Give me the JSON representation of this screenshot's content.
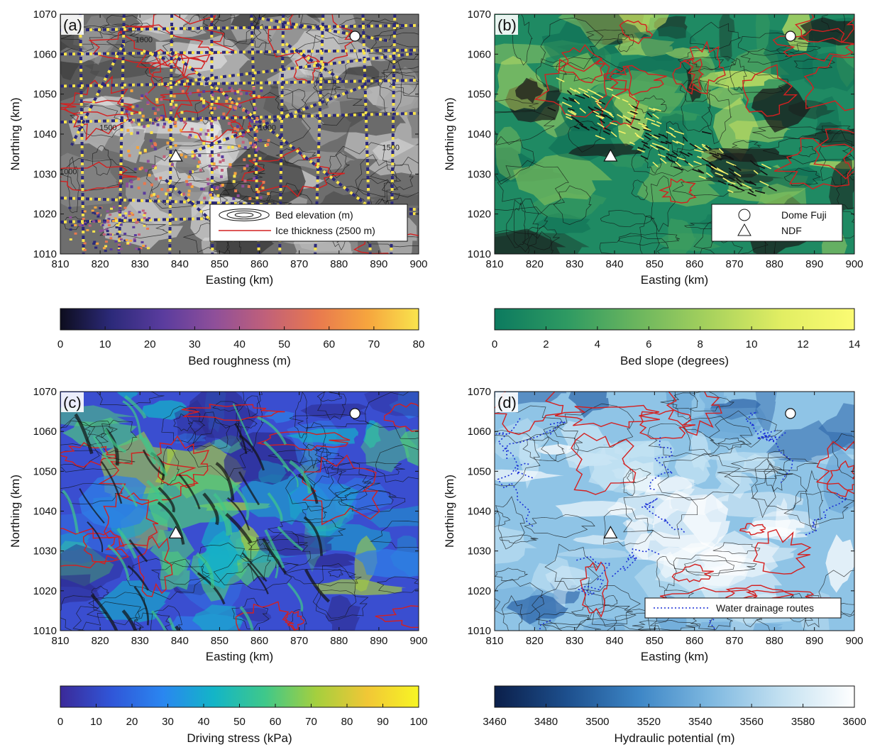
{
  "chart_data": [
    {
      "type": "heatmap",
      "panel_label": "(a)",
      "xlabel": "Easting (km)",
      "ylabel": "Northing (km)",
      "xlim": [
        810,
        900
      ],
      "ylim": [
        1010,
        1070
      ],
      "xticks": [
        810,
        820,
        830,
        840,
        850,
        860,
        870,
        880,
        890,
        900
      ],
      "yticks": [
        1010,
        1020,
        1030,
        1040,
        1050,
        1060,
        1070
      ],
      "colorbar": {
        "label": "Bed roughness (m)",
        "range": [
          0,
          80
        ],
        "ticks": [
          0,
          10,
          20,
          30,
          40,
          50,
          60,
          70,
          80
        ]
      },
      "contour_labels": [
        {
          "text": "1000",
          "x": 831,
          "y": 1063
        },
        {
          "text": "1000",
          "x": 862,
          "y": 1041
        },
        {
          "text": "1500",
          "x": 822,
          "y": 1041
        },
        {
          "text": "1500",
          "x": 893,
          "y": 1036
        },
        {
          "text": "1000",
          "x": 812,
          "y": 1030
        }
      ],
      "markers": [
        {
          "name": "Dome Fuji",
          "x": 884,
          "y": 1064.5,
          "shape": "circle"
        },
        {
          "name": "NDF",
          "x": 839,
          "y": 1034.5,
          "shape": "triangle"
        }
      ],
      "legend": {
        "position": "bottom-right",
        "entries": [
          "Bed elevation (m)",
          "Ice thickness (2500 m)"
        ]
      }
    },
    {
      "type": "heatmap",
      "panel_label": "(b)",
      "xlabel": "Easting (km)",
      "ylabel": "Northing (km)",
      "xlim": [
        810,
        900
      ],
      "ylim": [
        1010,
        1070
      ],
      "xticks": [
        810,
        820,
        830,
        840,
        850,
        860,
        870,
        880,
        890,
        900
      ],
      "yticks": [
        1010,
        1020,
        1030,
        1040,
        1050,
        1060,
        1070
      ],
      "colorbar": {
        "label": "Bed slope (degrees)",
        "range": [
          0,
          14
        ],
        "ticks": [
          0,
          2,
          4,
          6,
          8,
          10,
          12,
          14
        ]
      },
      "markers": [
        {
          "name": "Dome Fuji",
          "x": 884,
          "y": 1064.5,
          "shape": "circle"
        },
        {
          "name": "NDF",
          "x": 839,
          "y": 1034.5,
          "shape": "triangle"
        }
      ],
      "legend": {
        "position": "bottom-right",
        "entries": [
          "Dome Fuji",
          "NDF"
        ]
      }
    },
    {
      "type": "heatmap",
      "panel_label": "(c)",
      "xlabel": "Easting (km)",
      "ylabel": "Northing (km)",
      "xlim": [
        810,
        900
      ],
      "ylim": [
        1010,
        1070
      ],
      "xticks": [
        810,
        820,
        830,
        840,
        850,
        860,
        870,
        880,
        890,
        900
      ],
      "yticks": [
        1010,
        1020,
        1030,
        1040,
        1050,
        1060,
        1070
      ],
      "colorbar": {
        "label": "Driving stress (kPa)",
        "range": [
          0,
          100
        ],
        "ticks": [
          0,
          10,
          20,
          30,
          40,
          50,
          60,
          70,
          80,
          90,
          100
        ]
      },
      "markers": [
        {
          "name": "Dome Fuji",
          "x": 884,
          "y": 1064.5,
          "shape": "circle"
        },
        {
          "name": "NDF",
          "x": 839,
          "y": 1034.5,
          "shape": "triangle"
        }
      ]
    },
    {
      "type": "heatmap",
      "panel_label": "(d)",
      "xlabel": "Easting (km)",
      "ylabel": "Northing (km)",
      "xlim": [
        810,
        900
      ],
      "ylim": [
        1010,
        1070
      ],
      "xticks": [
        810,
        820,
        830,
        840,
        850,
        860,
        870,
        880,
        890,
        900
      ],
      "yticks": [
        1010,
        1020,
        1030,
        1040,
        1050,
        1060,
        1070
      ],
      "colorbar": {
        "label": "Hydraulic potential (m)",
        "range": [
          3460,
          3600
        ],
        "ticks": [
          3460,
          3480,
          3500,
          3520,
          3540,
          3560,
          3580,
          3600
        ]
      },
      "markers": [
        {
          "name": "Dome Fuji",
          "x": 884,
          "y": 1064.5,
          "shape": "circle"
        },
        {
          "name": "NDF",
          "x": 839,
          "y": 1034.5,
          "shape": "triangle"
        }
      ],
      "legend": {
        "position": "bottom-right",
        "entries": [
          "Water drainage routes"
        ]
      }
    }
  ],
  "colors": {
    "ice_thickness_contour": "#d42020",
    "drainage_routes": "#1a2fd6",
    "roughness_cmap": [
      "#0d0d1e",
      "#2c2a7a",
      "#5a3c9e",
      "#8e4f9a",
      "#c0607a",
      "#e8784f",
      "#f6a53e",
      "#f9e44d"
    ],
    "slope_cmap": [
      "#0c7a5f",
      "#2e9a62",
      "#6cb65e",
      "#a8d25d",
      "#e2ee63",
      "#fbfb73"
    ],
    "stress_cmap": [
      "#3b2a99",
      "#3056d8",
      "#2a86f0",
      "#13b5c7",
      "#3fc88a",
      "#a5cf3e",
      "#f1c736",
      "#f7f524"
    ],
    "hydraulic_cmap": [
      "#0b1f4a",
      "#1d4f8d",
      "#3d86c6",
      "#7eb8e0",
      "#c4e1f1",
      "#ffffff"
    ]
  }
}
